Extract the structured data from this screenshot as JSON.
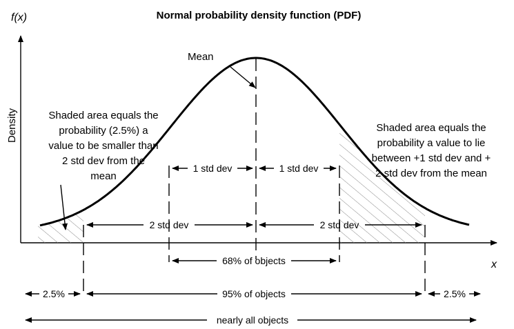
{
  "title": "Normal  probability density function (PDF)",
  "y_axis_var": "f(x)",
  "y_axis_label": "Density",
  "x_axis_var": "x",
  "mean_label": "Mean",
  "left_note": [
    "Shaded area equals  the",
    "probability (2.5%) a",
    "value to be smaller than",
    "2 std dev from the",
    "mean"
  ],
  "right_note": [
    "Shaded area equals the",
    "probability a value to lie",
    "between +1 std dev and +",
    "2 std dev from the mean"
  ],
  "spans": {
    "one_std_left": "1 std dev",
    "one_std_right": "1 std dev",
    "two_std_left": "2 std dev",
    "two_std_right": "2 std dev",
    "pct_68": "68% of objects",
    "pct_95": "95% of objects",
    "tail_left": "2.5%",
    "tail_right": "2.5%",
    "all": "nearly all objects"
  }
}
